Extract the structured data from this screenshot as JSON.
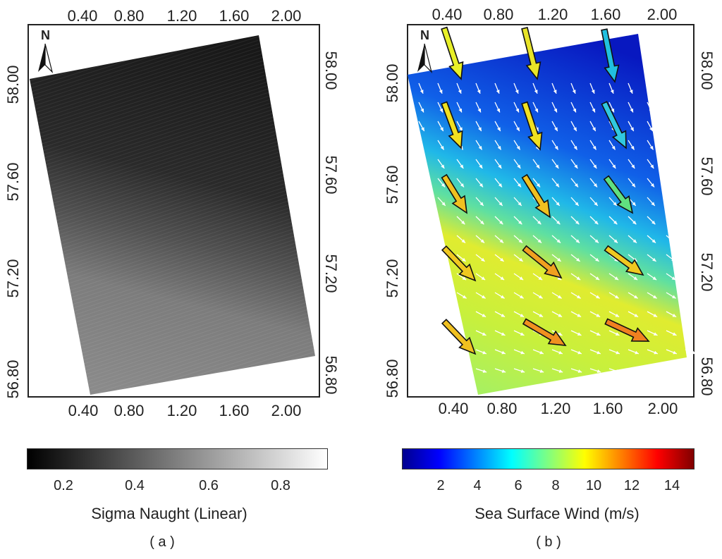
{
  "panels": [
    {
      "id": "a",
      "top_ticks": [
        "0.40",
        "0.80",
        "1.20",
        "1.60",
        "2.00"
      ],
      "bottom_ticks": [
        "0.40",
        "0.80",
        "1.20",
        "1.60",
        "2.00"
      ],
      "left_ticks": [
        "58.00",
        "57.60",
        "57.20",
        "56.80"
      ],
      "right_ticks": [
        "58.00",
        "57.60",
        "57.20",
        "56.80"
      ],
      "north_label": "N",
      "colorbar_title": "Sigma Naught (Linear)",
      "colorbar_ticks": [
        "0.2",
        "0.4",
        "0.6",
        "0.8"
      ],
      "colorbar_colors": [
        "#000000",
        "#ffffff"
      ],
      "caption": "( a )"
    },
    {
      "id": "b",
      "top_ticks": [
        "0.40",
        "0.80",
        "1.20",
        "1.60",
        "2.00"
      ],
      "bottom_ticks": [
        "0.40",
        "0.80",
        "1.20",
        "1.60",
        "2.00"
      ],
      "left_ticks": [
        "58.00",
        "57.60",
        "57.20",
        "56.80"
      ],
      "right_ticks": [
        "58.00",
        "57.60",
        "57.20",
        "56.80"
      ],
      "north_label": "N",
      "colorbar_title": "Sea Surface Wind (m/s)",
      "colorbar_ticks": [
        "2",
        "4",
        "6",
        "8",
        "10",
        "12",
        "14"
      ],
      "colorbar_colors": [
        "#00008f",
        "#0000ff",
        "#0080ff",
        "#00ffff",
        "#80ff80",
        "#ffff00",
        "#ff8000",
        "#ff0000",
        "#800000"
      ],
      "caption": "( b )"
    }
  ]
}
